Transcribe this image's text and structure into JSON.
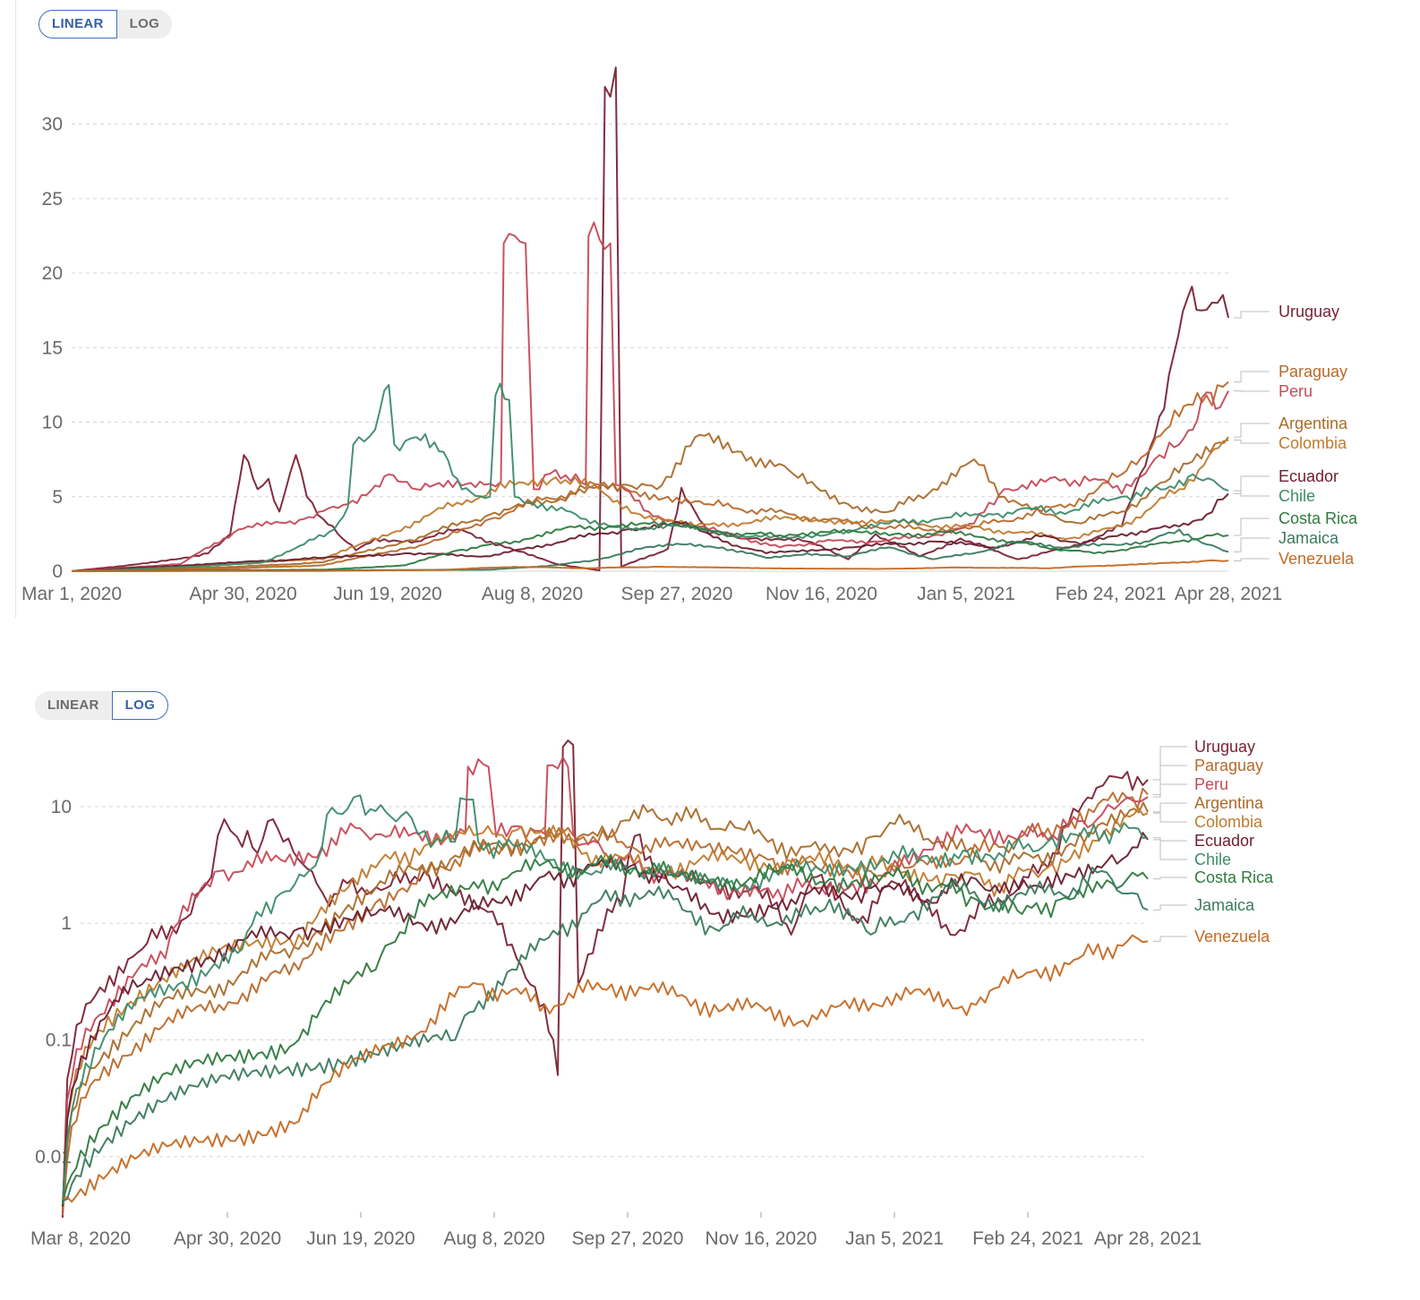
{
  "chart_data": [
    {
      "type": "line",
      "scale": "linear",
      "toggle": {
        "options": [
          "LINEAR",
          "LOG"
        ],
        "selected": "LINEAR"
      },
      "x_tick_labels": [
        "Mar 1, 2020",
        "Apr 30, 2020",
        "Jun 19, 2020",
        "Aug 8, 2020",
        "Sep 27, 2020",
        "Nov 16, 2020",
        "Jan 5, 2021",
        "Feb 24, 2021",
        "Apr 28, 2021"
      ],
      "y_ticks": [
        0,
        5,
        10,
        15,
        20,
        25,
        30
      ],
      "y_tick_labels": [
        "0",
        "5",
        "10",
        "15",
        "20",
        "25",
        "30"
      ],
      "xlim": [
        "2020-03-01",
        "2021-04-28"
      ],
      "ylim": [
        0,
        34
      ],
      "grid": "horizontal dashed",
      "legend": "right, labels at line ends",
      "legend_labels": [
        "Uruguay",
        "Paraguay",
        "Peru",
        "Argentina",
        "Colombia",
        "Ecuador",
        "Chile",
        "Costa Rica",
        "Jamaica",
        "Venezuela"
      ]
    },
    {
      "type": "line",
      "scale": "log",
      "toggle": {
        "options": [
          "LINEAR",
          "LOG"
        ],
        "selected": "LOG"
      },
      "x_tick_labels": [
        "Mar 8, 2020",
        "Apr 30, 2020",
        "Jun 19, 2020",
        "Aug 8, 2020",
        "Sep 27, 2020",
        "Nov 16, 2020",
        "Jan 5, 2021",
        "Feb 24, 2021",
        "Apr 28, 2021"
      ],
      "y_ticks": [
        0.01,
        0.1,
        1,
        10
      ],
      "y_tick_labels": [
        "0.01",
        "0.1",
        "1",
        "10"
      ],
      "xlim": [
        "2020-03-08",
        "2021-04-28"
      ],
      "ylim": [
        0.003,
        35
      ],
      "grid": "horizontal dashed",
      "legend": "right, labels at line ends",
      "legend_labels": [
        "Uruguay",
        "Paraguay",
        "Peru",
        "Argentina",
        "Colombia",
        "Ecuador",
        "Chile",
        "Costa Rica",
        "Jamaica",
        "Venezuela"
      ]
    }
  ],
  "series": [
    {
      "name": "Uruguay",
      "color": "#7a2236",
      "points": [
        [
          "2020-03-01",
          0
        ],
        [
          "2020-04-01",
          0.6
        ],
        [
          "2020-04-20",
          1.2
        ],
        [
          "2020-04-28",
          2.5
        ],
        [
          "2020-05-03",
          7.8
        ],
        [
          "2020-05-08",
          5.5
        ],
        [
          "2020-05-12",
          6.2
        ],
        [
          "2020-05-16",
          4.0
        ],
        [
          "2020-05-22",
          7.8
        ],
        [
          "2020-05-26",
          5.0
        ],
        [
          "2020-06-01",
          3.5
        ],
        [
          "2020-06-08",
          2.2
        ],
        [
          "2020-06-13",
          1.4
        ],
        [
          "2020-06-20",
          2.2
        ],
        [
          "2020-07-05",
          2.0
        ],
        [
          "2020-07-20",
          2.8
        ],
        [
          "2020-08-10",
          1.4
        ],
        [
          "2020-08-25",
          0.5
        ],
        [
          "2020-09-10",
          0.05
        ],
        [
          "2020-09-12",
          32.5
        ],
        [
          "2020-09-16",
          33.8
        ],
        [
          "2020-09-18",
          0.3
        ],
        [
          "2020-10-05",
          1.5
        ],
        [
          "2020-10-10",
          5.6
        ],
        [
          "2020-10-20",
          2.5
        ],
        [
          "2020-11-05",
          2.2
        ],
        [
          "2020-11-25",
          2.0
        ],
        [
          "2020-12-10",
          0.8
        ],
        [
          "2020-12-20",
          2.5
        ],
        [
          "2021-01-05",
          1.0
        ],
        [
          "2021-01-20",
          2.2
        ],
        [
          "2021-02-10",
          0.8
        ],
        [
          "2021-03-01",
          1.6
        ],
        [
          "2021-03-20",
          3.0
        ],
        [
          "2021-04-01",
          9.0
        ],
        [
          "2021-04-08",
          14.5
        ],
        [
          "2021-04-13",
          18.3
        ],
        [
          "2021-04-18",
          17.5
        ],
        [
          "2021-04-24",
          18.0
        ],
        [
          "2021-04-28",
          17.0
        ]
      ]
    },
    {
      "name": "Paraguay",
      "color": "#b8692b",
      "points": [
        [
          "2020-03-01",
          0
        ],
        [
          "2020-05-01",
          0.2
        ],
        [
          "2020-06-01",
          0.4
        ],
        [
          "2020-07-01",
          1.5
        ],
        [
          "2020-07-15",
          2.2
        ],
        [
          "2020-08-01",
          3.5
        ],
        [
          "2020-08-20",
          4.8
        ],
        [
          "2020-09-10",
          5.8
        ],
        [
          "2020-09-20",
          5.5
        ],
        [
          "2020-10-05",
          5.0
        ],
        [
          "2020-10-20",
          4.5
        ],
        [
          "2020-11-10",
          4.0
        ],
        [
          "2020-12-01",
          3.5
        ],
        [
          "2020-12-20",
          3.0
        ],
        [
          "2021-01-10",
          2.8
        ],
        [
          "2021-01-25",
          3.0
        ],
        [
          "2021-02-10",
          3.6
        ],
        [
          "2021-03-01",
          4.5
        ],
        [
          "2021-03-20",
          6.5
        ],
        [
          "2021-04-05",
          9.5
        ],
        [
          "2021-04-20",
          11.8
        ],
        [
          "2021-04-28",
          12.7
        ]
      ]
    },
    {
      "name": "Peru",
      "color": "#c54a59",
      "points": [
        [
          "2020-03-01",
          0
        ],
        [
          "2020-04-10",
          0.5
        ],
        [
          "2020-05-01",
          2.8
        ],
        [
          "2020-05-25",
          3.5
        ],
        [
          "2020-06-10",
          4.5
        ],
        [
          "2020-06-25",
          6.5
        ],
        [
          "2020-07-05",
          5.5
        ],
        [
          "2020-07-30",
          5.8
        ],
        [
          "2020-08-05",
          6.0
        ],
        [
          "2020-08-06",
          22.0
        ],
        [
          "2020-08-14",
          22.0
        ],
        [
          "2020-08-17",
          5.5
        ],
        [
          "2020-08-25",
          6.8
        ],
        [
          "2020-09-05",
          5.8
        ],
        [
          "2020-09-06",
          22.5
        ],
        [
          "2020-09-14",
          22.0
        ],
        [
          "2020-09-16",
          5.8
        ],
        [
          "2020-09-28",
          4.0
        ],
        [
          "2020-10-10",
          3.2
        ],
        [
          "2020-10-25",
          2.6
        ],
        [
          "2020-11-15",
          1.6
        ],
        [
          "2020-12-01",
          2.0
        ],
        [
          "2020-12-20",
          2.0
        ],
        [
          "2021-01-10",
          2.4
        ],
        [
          "2021-01-25",
          3.2
        ],
        [
          "2021-02-05",
          5.5
        ],
        [
          "2021-02-20",
          6.0
        ],
        [
          "2021-03-10",
          6.2
        ],
        [
          "2021-03-20",
          5.2
        ],
        [
          "2021-04-01",
          7.5
        ],
        [
          "2021-04-10",
          8.5
        ],
        [
          "2021-04-15",
          9.5
        ],
        [
          "2021-04-20",
          12.0
        ],
        [
          "2021-04-25",
          11.0
        ],
        [
          "2021-04-28",
          12.1
        ]
      ]
    },
    {
      "name": "Argentina",
      "color": "#a96b2a",
      "points": [
        [
          "2020-03-01",
          0
        ],
        [
          "2020-05-01",
          0.3
        ],
        [
          "2020-06-01",
          0.6
        ],
        [
          "2020-07-01",
          2.0
        ],
        [
          "2020-08-01",
          3.8
        ],
        [
          "2020-09-01",
          5.2
        ],
        [
          "2020-09-20",
          5.8
        ],
        [
          "2020-10-01",
          5.5
        ],
        [
          "2020-10-15",
          9.0
        ],
        [
          "2020-11-01",
          8.0
        ],
        [
          "2020-11-20",
          6.5
        ],
        [
          "2020-12-10",
          4.5
        ],
        [
          "2020-12-25",
          4.0
        ],
        [
          "2021-01-10",
          5.5
        ],
        [
          "2021-01-25",
          7.5
        ],
        [
          "2021-02-05",
          5.0
        ],
        [
          "2021-02-20",
          3.8
        ],
        [
          "2021-03-05",
          3.2
        ],
        [
          "2021-03-20",
          4.0
        ],
        [
          "2021-04-05",
          6.0
        ],
        [
          "2021-04-28",
          9.0
        ]
      ]
    },
    {
      "name": "Colombia",
      "color": "#c07a2e",
      "points": [
        [
          "2020-03-01",
          0
        ],
        [
          "2020-06-01",
          0.8
        ],
        [
          "2020-07-01",
          3.0
        ],
        [
          "2020-07-20",
          4.6
        ],
        [
          "2020-08-10",
          5.8
        ],
        [
          "2020-08-25",
          6.3
        ],
        [
          "2020-09-10",
          5.5
        ],
        [
          "2020-09-25",
          3.8
        ],
        [
          "2020-10-15",
          3.0
        ],
        [
          "2020-11-15",
          3.5
        ],
        [
          "2020-12-10",
          3.4
        ],
        [
          "2021-01-01",
          3.2
        ],
        [
          "2021-01-20",
          3.0
        ],
        [
          "2021-02-10",
          2.6
        ],
        [
          "2021-03-01",
          2.2
        ],
        [
          "2021-03-20",
          3.0
        ],
        [
          "2021-04-10",
          5.5
        ],
        [
          "2021-04-28",
          8.8
        ]
      ]
    },
    {
      "name": "Ecuador",
      "color": "#6a1e2e",
      "points": [
        [
          "2020-03-01",
          0
        ],
        [
          "2020-04-01",
          0.3
        ],
        [
          "2020-05-01",
          0.6
        ],
        [
          "2020-06-01",
          0.9
        ],
        [
          "2020-07-01",
          1.2
        ],
        [
          "2020-08-01",
          1.0
        ],
        [
          "2020-09-01",
          2.2
        ],
        [
          "2020-09-20",
          2.8
        ],
        [
          "2020-10-10",
          3.2
        ],
        [
          "2020-10-25",
          2.0
        ],
        [
          "2020-11-10",
          1.2
        ],
        [
          "2020-12-10",
          1.6
        ],
        [
          "2021-01-10",
          2.0
        ],
        [
          "2021-02-01",
          1.6
        ],
        [
          "2021-02-20",
          2.4
        ],
        [
          "2021-03-05",
          1.8
        ],
        [
          "2021-03-20",
          2.5
        ],
        [
          "2021-04-10",
          3.0
        ],
        [
          "2021-04-20",
          3.8
        ],
        [
          "2021-04-28",
          5.2
        ]
      ]
    },
    {
      "name": "Chile",
      "color": "#3d8b6a",
      "points": [
        [
          "2020-03-01",
          0
        ],
        [
          "2020-04-15",
          0.3
        ],
        [
          "2020-05-10",
          0.6
        ],
        [
          "2020-05-25",
          1.8
        ],
        [
          "2020-06-05",
          2.8
        ],
        [
          "2020-06-10",
          4.3
        ],
        [
          "2020-06-12",
          8.5
        ],
        [
          "2020-06-20",
          9.5
        ],
        [
          "2020-06-25",
          12.5
        ],
        [
          "2020-06-27",
          8.5
        ],
        [
          "2020-07-05",
          9.0
        ],
        [
          "2020-07-15",
          8.0
        ],
        [
          "2020-07-20",
          6.2
        ],
        [
          "2020-07-25",
          5.3
        ],
        [
          "2020-08-01",
          5.0
        ],
        [
          "2020-08-03",
          11.8
        ],
        [
          "2020-08-08",
          11.5
        ],
        [
          "2020-08-10",
          5.0
        ],
        [
          "2020-08-20",
          4.5
        ],
        [
          "2020-09-05",
          3.5
        ],
        [
          "2020-09-25",
          2.8
        ],
        [
          "2020-10-10",
          3.0
        ],
        [
          "2020-10-25",
          2.5
        ],
        [
          "2020-11-15",
          2.2
        ],
        [
          "2020-12-05",
          2.6
        ],
        [
          "2020-12-25",
          3.2
        ],
        [
          "2021-01-15",
          3.6
        ],
        [
          "2021-02-01",
          3.8
        ],
        [
          "2021-02-15",
          4.2
        ],
        [
          "2021-03-01",
          4.0
        ],
        [
          "2021-03-20",
          5.0
        ],
        [
          "2021-04-05",
          5.5
        ],
        [
          "2021-04-15",
          6.5
        ],
        [
          "2021-04-28",
          5.4
        ]
      ]
    },
    {
      "name": "Costa Rica",
      "color": "#2f7a3f",
      "points": [
        [
          "2020-03-01",
          0
        ],
        [
          "2020-06-01",
          0.1
        ],
        [
          "2020-07-01",
          0.4
        ],
        [
          "2020-07-20",
          1.4
        ],
        [
          "2020-08-10",
          2.0
        ],
        [
          "2020-08-25",
          2.8
        ],
        [
          "2020-09-10",
          3.0
        ],
        [
          "2020-09-25",
          3.2
        ],
        [
          "2020-10-10",
          3.0
        ],
        [
          "2020-10-25",
          2.6
        ],
        [
          "2020-11-15",
          2.4
        ],
        [
          "2020-12-05",
          2.8
        ],
        [
          "2020-12-25",
          2.4
        ],
        [
          "2021-01-15",
          2.6
        ],
        [
          "2021-02-01",
          2.2
        ],
        [
          "2021-02-20",
          1.6
        ],
        [
          "2021-03-10",
          1.2
        ],
        [
          "2021-03-25",
          1.6
        ],
        [
          "2021-04-10",
          2.0
        ],
        [
          "2021-04-20",
          2.4
        ],
        [
          "2021-04-28",
          2.4
        ]
      ]
    },
    {
      "name": "Jamaica",
      "color": "#3a7a5e",
      "points": [
        [
          "2020-03-01",
          0
        ],
        [
          "2020-08-01",
          0.1
        ],
        [
          "2020-08-25",
          0.4
        ],
        [
          "2020-09-10",
          0.8
        ],
        [
          "2020-09-25",
          1.5
        ],
        [
          "2020-10-10",
          1.8
        ],
        [
          "2020-10-25",
          1.6
        ],
        [
          "2020-11-10",
          0.9
        ],
        [
          "2020-11-25",
          1.2
        ],
        [
          "2020-12-10",
          1.0
        ],
        [
          "2020-12-25",
          1.6
        ],
        [
          "2021-01-10",
          0.8
        ],
        [
          "2021-01-25",
          1.2
        ],
        [
          "2021-02-10",
          2.0
        ],
        [
          "2021-02-25",
          1.6
        ],
        [
          "2021-03-15",
          1.8
        ],
        [
          "2021-03-30",
          2.0
        ],
        [
          "2021-04-10",
          2.8
        ],
        [
          "2021-04-20",
          1.8
        ],
        [
          "2021-04-28",
          1.3
        ]
      ]
    },
    {
      "name": "Venezuela",
      "color": "#c46a24",
      "points": [
        [
          "2020-03-01",
          0
        ],
        [
          "2020-06-01",
          0.02
        ],
        [
          "2020-07-15",
          0.1
        ],
        [
          "2020-08-10",
          0.3
        ],
        [
          "2020-09-05",
          0.2
        ],
        [
          "2020-10-01",
          0.3
        ],
        [
          "2020-11-10",
          0.2
        ],
        [
          "2020-12-20",
          0.15
        ],
        [
          "2021-01-20",
          0.25
        ],
        [
          "2021-02-20",
          0.2
        ],
        [
          "2021-03-10",
          0.35
        ],
        [
          "2021-04-01",
          0.5
        ],
        [
          "2021-04-20",
          0.7
        ],
        [
          "2021-04-28",
          0.7
        ]
      ]
    }
  ]
}
